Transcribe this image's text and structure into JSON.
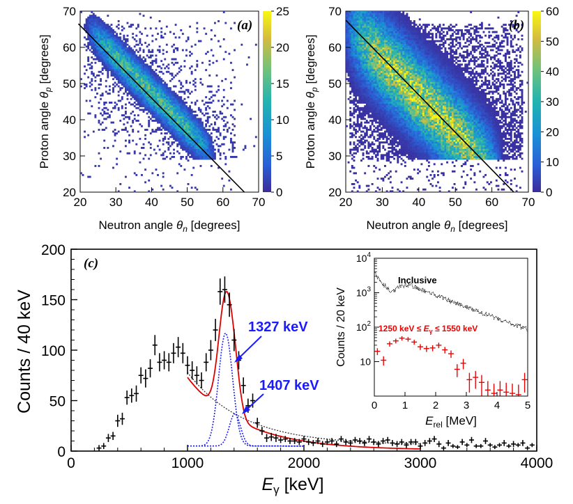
{
  "colors": {
    "marker": "#000000",
    "fit": "#dd0000",
    "component": "#1a1aff",
    "background": "#333333",
    "gated": "#ee0000",
    "label_blue": "#1a1aff",
    "label_red": "#ee0000"
  },
  "chart_data": [
    {
      "id": "a",
      "type": "heatmap",
      "panel_label": "(a)",
      "xlabel_prefix": "Neutron angle ",
      "xlabel_sym": "θ",
      "xlabel_sub": "n",
      "xlabel_suffix": " [degrees]",
      "ylabel_prefix": "Proton angle ",
      "ylabel_sym": "θ",
      "ylabel_sub": "p",
      "ylabel_suffix": " [degrees]",
      "xlim": [
        20,
        70
      ],
      "ylim": [
        20,
        70
      ],
      "xticks": [
        "20",
        "30",
        "40",
        "50",
        "60",
        "70"
      ],
      "yticks": [
        "20",
        "30",
        "40",
        "50",
        "60",
        "70"
      ],
      "zlim": [
        0,
        25
      ],
      "zticks": [
        "0",
        "5",
        "10",
        "15",
        "20",
        "25"
      ],
      "band": {
        "slope": -1.0,
        "intercept": 87,
        "width": 3.0,
        "peak": 14,
        "x_range": [
          22,
          57
        ],
        "y_min": 29
      },
      "line": {
        "x": [
          19.5,
          66
        ],
        "y": [
          66.5,
          20
        ]
      }
    },
    {
      "id": "b",
      "type": "heatmap",
      "panel_label": "(b)",
      "xlabel_prefix": "Neutron angle ",
      "xlabel_sym": "θ",
      "xlabel_sub": "n",
      "xlabel_suffix": " [degrees]",
      "ylabel_prefix": "Proton angle ",
      "ylabel_sym": "θ",
      "ylabel_sub": "p",
      "ylabel_suffix": " [degrees]",
      "xlim": [
        20,
        70
      ],
      "ylim": [
        20,
        70
      ],
      "xticks": [
        "20",
        "30",
        "40",
        "50",
        "60",
        "70"
      ],
      "yticks": [
        "20",
        "30",
        "40",
        "50",
        "60",
        "70"
      ],
      "zlim": [
        0,
        60
      ],
      "zticks": [
        "0",
        "10",
        "20",
        "30",
        "40",
        "50",
        "60"
      ],
      "band": {
        "slope": -1.0,
        "intercept": 86,
        "width": 7.0,
        "peak": 48,
        "x_range": [
          20,
          62
        ],
        "y_min": 29
      },
      "line": {
        "x": [
          20,
          66
        ],
        "y": [
          67.5,
          20
        ]
      }
    },
    {
      "id": "c",
      "type": "scatter",
      "panel_label": "(c)",
      "xlabel_sym": "E",
      "xlabel_sub": "γ",
      "xlabel_suffix": " [keV]",
      "ylabel": "Counts / 40 keV",
      "xlim": [
        0,
        4000
      ],
      "ylim": [
        0,
        200
      ],
      "xticks": [
        "0",
        "1000",
        "2000",
        "3000",
        "4000"
      ],
      "yticks": [
        "0",
        "50",
        "100",
        "150",
        "200"
      ],
      "series": [
        {
          "name": "data",
          "x": [
            240,
            280,
            320,
            360,
            400,
            440,
            480,
            520,
            560,
            600,
            640,
            680,
            720,
            760,
            800,
            840,
            880,
            920,
            960,
            1000,
            1040,
            1080,
            1120,
            1160,
            1200,
            1240,
            1280,
            1320,
            1360,
            1400,
            1440,
            1480,
            1520,
            1560,
            1600,
            1640,
            1680,
            1720,
            1760,
            1800,
            1840,
            1880,
            1920,
            1960,
            2000,
            2040,
            2080,
            2120,
            2160,
            2200,
            2240,
            2280,
            2320,
            2360,
            2400,
            2440,
            2480,
            2520,
            2560,
            2600,
            2640,
            2680,
            2720,
            2760,
            2800,
            2840,
            2880,
            2920,
            2960,
            3000,
            3040,
            3080,
            3120,
            3160,
            3200,
            3240,
            3280,
            3320,
            3360,
            3400,
            3440,
            3480,
            3520,
            3560,
            3600,
            3640,
            3680,
            3720,
            3760,
            3800,
            3840,
            3880,
            3920,
            3960
          ],
          "y": [
            3,
            5,
            13,
            15,
            30,
            32,
            53,
            55,
            57,
            75,
            72,
            82,
            105,
            88,
            90,
            88,
            97,
            103,
            97,
            85,
            80,
            75,
            70,
            88,
            100,
            120,
            158,
            160,
            145,
            110,
            90,
            65,
            45,
            50,
            28,
            20,
            13,
            14,
            13,
            11,
            12,
            10,
            10,
            9,
            12,
            9,
            8,
            10,
            7,
            9,
            10,
            7,
            12,
            9,
            8,
            11,
            10,
            8,
            12,
            9,
            7,
            10,
            11,
            8,
            7,
            9,
            6,
            9,
            9,
            5,
            8,
            10,
            12,
            7,
            3,
            8,
            5,
            4,
            9,
            6,
            11,
            5,
            5,
            10,
            6,
            4,
            6,
            8,
            5,
            7,
            6,
            8,
            3,
            6
          ],
          "err": [
            3,
            3,
            4,
            4,
            6,
            6,
            7,
            7,
            8,
            8,
            9,
            9,
            10,
            9,
            9,
            9,
            10,
            10,
            10,
            9,
            9,
            9,
            8,
            9,
            10,
            11,
            13,
            13,
            12,
            11,
            9,
            8,
            7,
            7,
            5,
            4,
            4,
            4,
            4,
            3,
            3,
            3,
            3,
            3,
            3,
            3,
            3,
            3,
            3,
            3,
            3,
            3,
            3,
            3,
            3,
            3,
            3,
            3,
            3,
            3,
            3,
            3,
            3,
            3,
            3,
            3,
            3,
            3,
            3,
            3,
            3,
            3,
            3,
            3,
            2,
            3,
            2,
            2,
            3,
            2,
            3,
            2,
            2,
            3,
            2,
            2,
            2,
            3,
            2,
            3,
            2,
            3,
            2,
            2
          ]
        }
      ],
      "fit": {
        "x_range": [
          1000,
          3000
        ],
        "bg_a": 72,
        "bg_decay": 480,
        "bg_tail": 6,
        "peak1": {
          "mu": 1327,
          "sigma": 60,
          "amp": 112
        },
        "peak2": {
          "mu": 1407,
          "sigma": 48,
          "amp": 32
        }
      },
      "annotations": [
        {
          "text": "1327 keV",
          "x": 1530,
          "y": 85
        },
        {
          "text": "1407 keV",
          "x": 1590,
          "y": 43
        }
      ]
    },
    {
      "id": "inset",
      "type": "scatter",
      "xlabel_sym": "E",
      "xlabel_sub": "rel",
      "xlabel_suffix": " [MeV]",
      "ylabel": "Counts / 20 keV",
      "xlim": [
        0,
        5
      ],
      "ylog": [
        1,
        10000
      ],
      "xticks": [
        "0",
        "1",
        "2",
        "3",
        "4",
        "5"
      ],
      "ytick_values": [
        10,
        100,
        1000,
        10000
      ],
      "ytick_base": "10",
      "ytick_exp": [
        "",
        "2",
        "3",
        "4"
      ],
      "ytick_plain": "10",
      "label_inclusive": "Inclusive",
      "label_gated_pre": "1250 keV ≤ ",
      "label_gated_sym": "E",
      "label_gated_sub": "γ",
      "label_gated_post": " ≤ 1550 keV",
      "gated": {
        "x": [
          0.1,
          0.3,
          0.5,
          0.7,
          0.9,
          1.1,
          1.3,
          1.5,
          1.7,
          1.9,
          2.1,
          2.3,
          2.5,
          2.7,
          2.9,
          3.1,
          3.3,
          3.5,
          3.7,
          3.9,
          4.1,
          4.3,
          4.5,
          4.7,
          4.9
        ],
        "y": [
          20,
          11,
          33,
          40,
          48,
          45,
          37,
          27,
          24,
          25,
          30,
          22,
          17,
          6,
          9,
          3,
          3.5,
          2.5,
          1.5,
          1.2,
          1.5,
          1.3,
          1.2,
          1.1,
          3
        ]
      }
    }
  ]
}
